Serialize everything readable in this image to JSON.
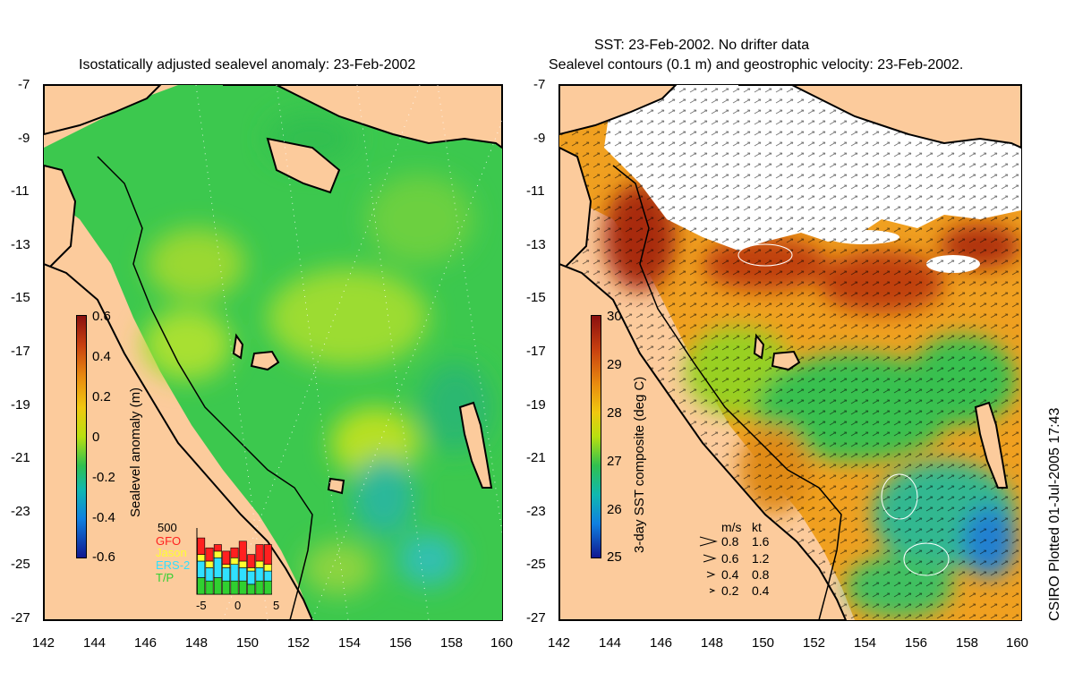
{
  "left_panel": {
    "title": "Isostatically adjusted sealevel anomaly: 23-Feb-2002",
    "colorbar": {
      "label": "Sealevel anomaly (m)",
      "ticks": [
        "0.6",
        "0.4",
        "0.2",
        "0",
        "-0.2",
        "-0.4",
        "-0.6"
      ],
      "range": [
        -0.6,
        0.6
      ]
    },
    "satellite_legend": {
      "scale_value": "500",
      "missions": [
        {
          "name": "GFO",
          "color": "#ff2020"
        },
        {
          "name": "Jason",
          "color": "#ffff30"
        },
        {
          "name": "ERS-2",
          "color": "#30e0ff"
        },
        {
          "name": "T/P",
          "color": "#30d030"
        }
      ],
      "x_ticks": [
        "-5",
        "0",
        "5"
      ],
      "bars": [
        {
          "tp": 0.25,
          "ers": 0.25,
          "jason": 0.1,
          "gfo": 0.25
        },
        {
          "tp": 0.2,
          "ers": 0.2,
          "jason": 0.1,
          "gfo": 0.2
        },
        {
          "tp": 0.25,
          "ers": 0.3,
          "jason": 0.1,
          "gfo": 0.1
        },
        {
          "tp": 0.2,
          "ers": 0.2,
          "jason": 0.05,
          "gfo": 0.2
        },
        {
          "tp": 0.2,
          "ers": 0.25,
          "jason": 0.1,
          "gfo": 0.15
        },
        {
          "tp": 0.2,
          "ers": 0.2,
          "jason": 0.1,
          "gfo": 0.3
        },
        {
          "tp": 0.15,
          "ers": 0.2,
          "jason": 0.05,
          "gfo": 0.2
        },
        {
          "tp": 0.2,
          "ers": 0.2,
          "jason": 0.1,
          "gfo": 0.25
        },
        {
          "tp": 0.2,
          "ers": 0.15,
          "jason": 0.1,
          "gfo": 0.3
        }
      ]
    }
  },
  "right_panel": {
    "title_line1": "SST: 23-Feb-2002. No drifter data",
    "title_line2": "Sealevel contours (0.1 m) and geostrophic velocity: 23-Feb-2002.",
    "colorbar": {
      "label": "3-day SST composite (deg C)",
      "ticks": [
        "30",
        "29",
        "28",
        "27",
        "26",
        "25"
      ],
      "range": [
        25,
        30
      ]
    },
    "velocity_legend": {
      "unit_ms": "m/s",
      "unit_kt": "kt",
      "rows": [
        {
          "ms": "0.8",
          "kt": "1.6"
        },
        {
          "ms": "0.6",
          "kt": "1.2"
        },
        {
          "ms": "0.4",
          "kt": "0.8"
        },
        {
          "ms": "0.2",
          "kt": "0.4"
        }
      ]
    }
  },
  "axes": {
    "lat_ticks": [
      "-7",
      "-9",
      "-11",
      "-13",
      "-15",
      "-17",
      "-19",
      "-21",
      "-23",
      "-25",
      "-27"
    ],
    "lon_ticks": [
      "142",
      "144",
      "146",
      "148",
      "150",
      "152",
      "154",
      "156",
      "158",
      "160"
    ],
    "lat_range": [
      -27,
      -7
    ],
    "lon_range": [
      142,
      160
    ]
  },
  "credit": "CSIRO Plotted 01-Jul-2005 17:43",
  "colors": {
    "land": "#fccb9c",
    "sla_base": "#2fc94a",
    "sst_base": "#f0a020",
    "cloud": "#ffffff"
  }
}
